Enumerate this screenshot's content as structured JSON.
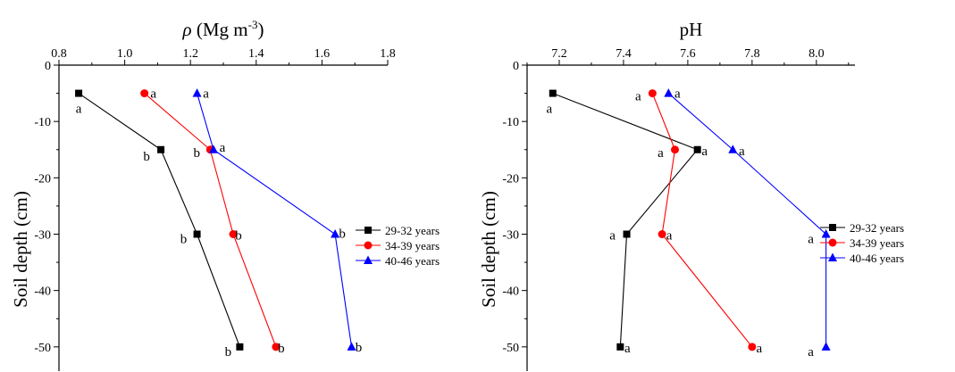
{
  "chart_data": [
    {
      "type": "line",
      "title": "ρ (Mg m-3)",
      "title_parts": {
        "symbol": "ρ",
        "text": " (Mg m",
        "superscript": "-3",
        "close": ")"
      },
      "xlabel_position": "top",
      "ylabel": "Soil depth (cm)",
      "xlim": [
        0.8,
        1.8
      ],
      "ylim": [
        -55,
        0
      ],
      "x_ticks": [
        0.8,
        1.0,
        1.2,
        1.4,
        1.6,
        1.8
      ],
      "x_tick_labels": [
        "0.8",
        "1.0",
        "1.2",
        "1.4",
        "1.6",
        "1.8"
      ],
      "y_ticks": [
        0,
        -10,
        -20,
        -30,
        -40,
        -50
      ],
      "y_tick_labels": [
        "0",
        "-10",
        "-20",
        "-30",
        "-40",
        "-50"
      ],
      "grid": false,
      "legend": "right",
      "series": [
        {
          "name": "29-32 years",
          "color": "#000000",
          "marker": "square",
          "x": [
            0.86,
            1.11,
            1.22,
            1.35
          ],
          "y": [
            -5,
            -15,
            -30,
            -50
          ],
          "letters": [
            "a",
            "b",
            "b",
            "b"
          ]
        },
        {
          "name": "34-39 years",
          "color": "#ff0000",
          "marker": "circle",
          "x": [
            1.06,
            1.26,
            1.33,
            1.46
          ],
          "y": [
            -5,
            -15,
            -30,
            -50
          ],
          "letters": [
            "a",
            "b",
            "b",
            "b"
          ]
        },
        {
          "name": "40-46 years",
          "color": "#0000ff",
          "marker": "triangle",
          "x": [
            1.22,
            1.27,
            1.64,
            1.69
          ],
          "y": [
            -5,
            -15,
            -30,
            -50
          ],
          "letters": [
            "a",
            "a",
            "b",
            "b"
          ]
        }
      ]
    },
    {
      "type": "line",
      "title": "pH",
      "xlabel_position": "top",
      "ylabel": "Soil depth (cm)",
      "xlim": [
        7.1,
        8.12
      ],
      "ylim": [
        -55,
        0
      ],
      "x_ticks": [
        7.2,
        7.4,
        7.6,
        7.8,
        8.0
      ],
      "x_tick_labels": [
        "7.2",
        "7.4",
        "7.6",
        "7.8",
        "8.0"
      ],
      "y_ticks": [
        0,
        -10,
        -20,
        -30,
        -40,
        -50
      ],
      "y_tick_labels": [
        "0",
        "-10",
        "-20",
        "-30",
        "-40",
        "-50"
      ],
      "grid": false,
      "legend": "right",
      "series": [
        {
          "name": "29-32 years",
          "color": "#000000",
          "marker": "square",
          "x": [
            7.18,
            7.63,
            7.41,
            7.39
          ],
          "y": [
            -5,
            -15,
            -30,
            -50
          ],
          "letters": [
            "a",
            "a",
            "a",
            "a"
          ]
        },
        {
          "name": "34-39 years",
          "color": "#ff0000",
          "marker": "circle",
          "x": [
            7.49,
            7.56,
            7.52,
            7.8
          ],
          "y": [
            -5,
            -15,
            -30,
            -50
          ],
          "letters": [
            "a",
            "a",
            "a",
            "a"
          ]
        },
        {
          "name": "40-46 years",
          "color": "#0000ff",
          "marker": "triangle",
          "x": [
            7.54,
            7.74,
            8.03,
            8.03
          ],
          "y": [
            -5,
            -15,
            -30,
            -50
          ],
          "letters": [
            "a",
            "a",
            "a",
            "a"
          ]
        }
      ]
    }
  ]
}
